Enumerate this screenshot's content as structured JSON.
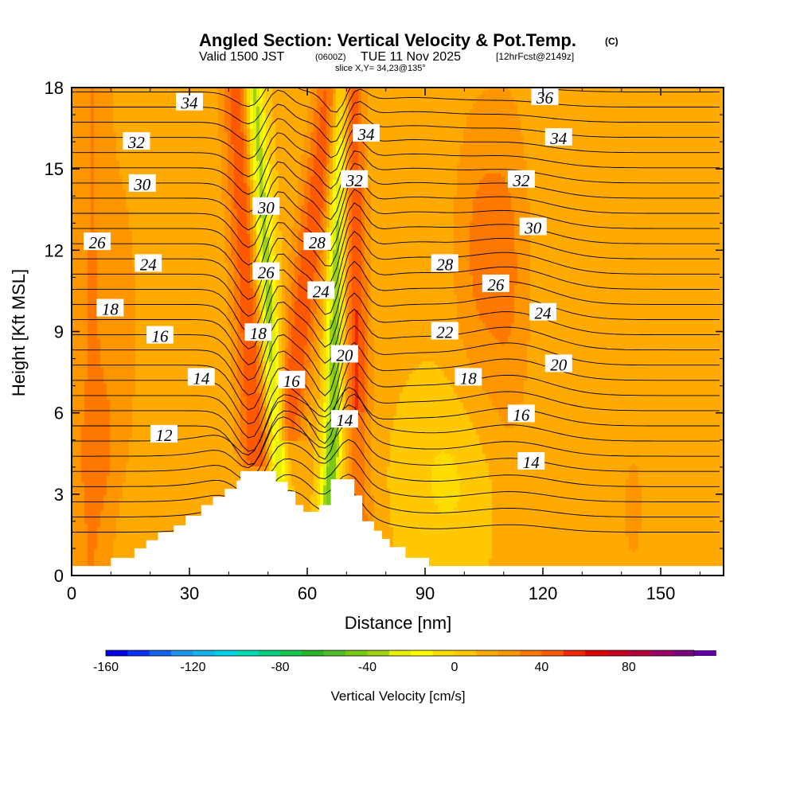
{
  "chart_data": {
    "type": "heatmap",
    "title": "Angled Section: Vertical Velocity & Pot.Temp.",
    "title_unit": "(C)",
    "subtitle": {
      "valid_prefix": "Valid 1500 JST",
      "utc": "(0600Z)",
      "date": "TUE 11 Nov 2025",
      "forecast": "[12hrFcst@2149z]"
    },
    "slice_label": "slice X,Y= 34,23@135°",
    "xlabel": "Distance [nm]",
    "ylabel": "Height [Kft MSL]",
    "xlim": [
      0,
      166
    ],
    "ylim": [
      0,
      18
    ],
    "x_ticks": [
      0,
      30,
      60,
      90,
      120,
      150
    ],
    "y_ticks": [
      0,
      3,
      6,
      9,
      12,
      15,
      18
    ],
    "colorbar": {
      "label": "Vertical Velocity [cm/s]",
      "min": -160,
      "max": 110,
      "step": 10,
      "tick_labels": [
        -160,
        -120,
        -80,
        -40,
        0,
        40,
        80
      ],
      "colors": [
        "#0000e6",
        "#0a32f0",
        "#1464f0",
        "#1e96f0",
        "#14b4f0",
        "#00d2e6",
        "#00dcb4",
        "#00d282",
        "#14c850",
        "#28b428",
        "#50be28",
        "#78c814",
        "#a0d214",
        "#e6f00a",
        "#ffff00",
        "#ffdc00",
        "#ffc800",
        "#ffaa00",
        "#ff9600",
        "#ff7800",
        "#ff5a00",
        "#f02800",
        "#dc0000",
        "#c8001e",
        "#b4003c",
        "#9b0064",
        "#7d0082",
        "#5a009b"
      ]
    },
    "terrain": [
      [
        0,
        0.35
      ],
      [
        10,
        0.35
      ],
      [
        10,
        0.65
      ],
      [
        16,
        0.65
      ],
      [
        16,
        1.0
      ],
      [
        19,
        1.0
      ],
      [
        19,
        1.3
      ],
      [
        22,
        1.3
      ],
      [
        22,
        1.6
      ],
      [
        26,
        1.6
      ],
      [
        26,
        1.85
      ],
      [
        29,
        1.85
      ],
      [
        29,
        2.2
      ],
      [
        33,
        2.2
      ],
      [
        33,
        2.6
      ],
      [
        36,
        2.6
      ],
      [
        36,
        2.9
      ],
      [
        39,
        2.9
      ],
      [
        39,
        3.2
      ],
      [
        42,
        3.2
      ],
      [
        42,
        3.5
      ],
      [
        43,
        3.5
      ],
      [
        43,
        3.85
      ],
      [
        52,
        3.85
      ],
      [
        52,
        3.45
      ],
      [
        55,
        3.45
      ],
      [
        55,
        3.1
      ],
      [
        57,
        3.1
      ],
      [
        57,
        2.6
      ],
      [
        59,
        2.6
      ],
      [
        59,
        2.35
      ],
      [
        63,
        2.35
      ],
      [
        63,
        2.6
      ],
      [
        66,
        2.6
      ],
      [
        66,
        3.55
      ],
      [
        72,
        3.55
      ],
      [
        72,
        2.95
      ],
      [
        74,
        2.95
      ],
      [
        74,
        2.0
      ],
      [
        77,
        2.0
      ],
      [
        77,
        1.65
      ],
      [
        79,
        1.65
      ],
      [
        79,
        1.35
      ],
      [
        81,
        1.35
      ],
      [
        81,
        1.05
      ],
      [
        85,
        1.05
      ],
      [
        85,
        0.65
      ],
      [
        91,
        0.65
      ],
      [
        91,
        0.35
      ],
      [
        166,
        0.35
      ]
    ],
    "theta_levels": [
      12,
      14,
      16,
      18,
      20,
      22,
      24,
      26,
      28,
      30,
      32,
      34,
      36
    ],
    "theta_contour_labels": [
      {
        "text": "34",
        "x": 30,
        "y": 17.45
      },
      {
        "text": "32",
        "x": 16.5,
        "y": 16.0
      },
      {
        "text": "30",
        "x": 18,
        "y": 14.45
      },
      {
        "text": "26",
        "x": 6.5,
        "y": 12.3
      },
      {
        "text": "24",
        "x": 19.5,
        "y": 11.5
      },
      {
        "text": "18",
        "x": 9.8,
        "y": 9.85
      },
      {
        "text": "16",
        "x": 22.5,
        "y": 8.85
      },
      {
        "text": "14",
        "x": 33,
        "y": 7.3
      },
      {
        "text": "12",
        "x": 23.5,
        "y": 5.2
      },
      {
        "text": "30",
        "x": 49.5,
        "y": 13.6
      },
      {
        "text": "26",
        "x": 49.5,
        "y": 11.2
      },
      {
        "text": "18",
        "x": 47.5,
        "y": 8.95
      },
      {
        "text": "16",
        "x": 56,
        "y": 7.2
      },
      {
        "text": "28",
        "x": 62.5,
        "y": 12.3
      },
      {
        "text": "24",
        "x": 63.5,
        "y": 10.5
      },
      {
        "text": "20",
        "x": 69.5,
        "y": 8.15
      },
      {
        "text": "14",
        "x": 69.5,
        "y": 5.75
      },
      {
        "text": "34",
        "x": 75,
        "y": 16.3
      },
      {
        "text": "32",
        "x": 72,
        "y": 14.6
      },
      {
        "text": "28",
        "x": 95,
        "y": 11.5
      },
      {
        "text": "22",
        "x": 95,
        "y": 9.0
      },
      {
        "text": "18",
        "x": 101,
        "y": 7.3
      },
      {
        "text": "26",
        "x": 108,
        "y": 10.75
      },
      {
        "text": "24",
        "x": 120,
        "y": 9.7
      },
      {
        "text": "20",
        "x": 124,
        "y": 7.8
      },
      {
        "text": "16",
        "x": 114.5,
        "y": 5.95
      },
      {
        "text": "14",
        "x": 117,
        "y": 4.2
      },
      {
        "text": "36",
        "x": 120.5,
        "y": 17.65
      },
      {
        "text": "34",
        "x": 124,
        "y": 16.15
      },
      {
        "text": "32",
        "x": 114.5,
        "y": 14.6
      },
      {
        "text": "30",
        "x": 117.5,
        "y": 12.85
      }
    ]
  }
}
